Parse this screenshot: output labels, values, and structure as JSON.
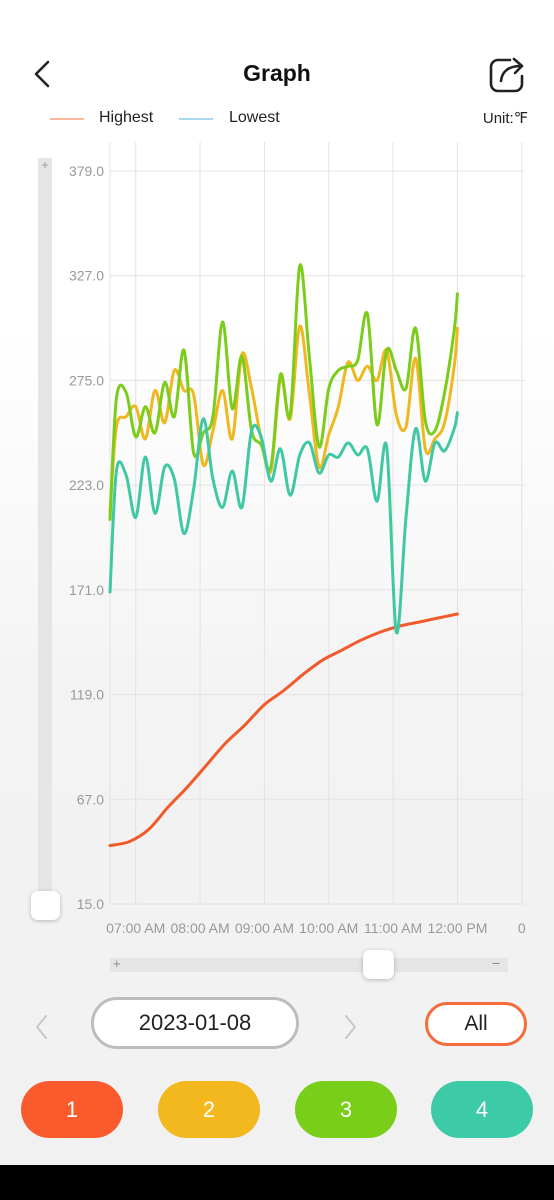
{
  "header": {
    "title": "Graph",
    "back_icon": "chevron-left-icon",
    "share_icon": "share-export-icon"
  },
  "legend": {
    "highest_label": "Highest",
    "highest_color": "#f7b89c",
    "lowest_label": "Lowest",
    "lowest_color": "#a9d9f0",
    "unit": "Unit:℉"
  },
  "chart_data": {
    "type": "line",
    "ylim": [
      15.0,
      379.0
    ],
    "y_ticks": [
      "379.0",
      "327.0",
      "275.0",
      "223.0",
      "171.0",
      "119.0",
      "67.0",
      "15.0"
    ],
    "x_tick_labels": [
      "07:00 AM",
      "08:00 AM",
      "09:00 AM",
      "10:00 AM",
      "11:00 AM",
      "12:00 PM",
      "0"
    ],
    "x_tick_times": [
      0.7,
      1.7,
      2.7,
      3.7,
      4.7,
      5.7,
      6.7
    ],
    "xlim": [
      0.3,
      6.75
    ],
    "grid": true,
    "series": [
      {
        "color": "#f15a2b",
        "x": [
          0.3,
          0.6,
          0.9,
          1.2,
          1.5,
          1.8,
          2.1,
          2.4,
          2.7,
          3.0,
          3.3,
          3.6,
          3.9,
          4.2,
          4.5,
          4.8,
          5.1,
          5.4,
          5.7
        ],
        "y": [
          44,
          46,
          52,
          63,
          73,
          84,
          95,
          104,
          114,
          121,
          129,
          136,
          141,
          146,
          150,
          153,
          155,
          157,
          159
        ]
      },
      {
        "color": "#efb820",
        "x": [
          0.3,
          0.4,
          0.55,
          0.7,
          0.85,
          1.0,
          1.15,
          1.3,
          1.45,
          1.6,
          1.75,
          1.9,
          2.05,
          2.2,
          2.35,
          2.5,
          2.65,
          2.8,
          2.95,
          3.1,
          3.25,
          3.4,
          3.55,
          3.7,
          3.85,
          4.0,
          4.15,
          4.3,
          4.45,
          4.6,
          4.75,
          4.9,
          5.05,
          5.2,
          5.35,
          5.5,
          5.65,
          5.7
        ],
        "y": [
          210,
          252,
          257,
          262,
          246,
          270,
          254,
          280,
          270,
          268,
          233,
          250,
          270,
          246,
          288,
          271,
          246,
          230,
          276,
          256,
          302,
          268,
          232,
          248,
          262,
          284,
          275,
          282,
          275,
          290,
          258,
          252,
          286,
          241,
          246,
          254,
          282,
          301
        ]
      },
      {
        "color": "#7ccc1c",
        "x": [
          0.3,
          0.4,
          0.55,
          0.7,
          0.85,
          1.0,
          1.15,
          1.3,
          1.45,
          1.6,
          1.75,
          1.9,
          2.05,
          2.2,
          2.35,
          2.5,
          2.65,
          2.8,
          2.95,
          3.1,
          3.25,
          3.4,
          3.55,
          3.7,
          3.85,
          4.0,
          4.15,
          4.3,
          4.45,
          4.6,
          4.75,
          4.9,
          5.05,
          5.2,
          5.35,
          5.5,
          5.65,
          5.7
        ],
        "y": [
          206,
          266,
          269,
          247,
          262,
          249,
          274,
          257,
          290,
          239,
          249,
          257,
          304,
          261,
          287,
          250,
          243,
          232,
          278,
          258,
          332,
          286,
          242,
          271,
          280,
          282,
          285,
          308,
          253,
          290,
          280,
          271,
          301,
          255,
          250,
          269,
          300,
          318
        ]
      },
      {
        "color": "#40c8a4",
        "x": [
          0.3,
          0.4,
          0.55,
          0.7,
          0.85,
          1.0,
          1.15,
          1.3,
          1.45,
          1.6,
          1.75,
          1.9,
          2.05,
          2.2,
          2.35,
          2.5,
          2.65,
          2.8,
          2.95,
          3.1,
          3.25,
          3.4,
          3.55,
          3.7,
          3.85,
          4.0,
          4.15,
          4.3,
          4.45,
          4.6,
          4.75,
          4.9,
          5.05,
          5.2,
          5.35,
          5.5,
          5.65,
          5.7
        ],
        "y": [
          170,
          230,
          228,
          207,
          237,
          209,
          232,
          226,
          199,
          221,
          256,
          226,
          212,
          230,
          212,
          250,
          247,
          225,
          241,
          218,
          238,
          244,
          229,
          238,
          237,
          244,
          238,
          241,
          215,
          242,
          150,
          207,
          251,
          225,
          244,
          240,
          251,
          259
        ]
      }
    ]
  },
  "scroll": {
    "vertical_plus": "+",
    "horizontal_plus": "+",
    "horizontal_minus": "−"
  },
  "date_nav": {
    "prev_icon": "chevron-left-icon",
    "next_icon": "chevron-right-icon",
    "date": "2023-01-08",
    "all_label": "All",
    "all_border_color": "#f46c3c"
  },
  "channels": [
    {
      "label": "1",
      "color": "#fb5a2c"
    },
    {
      "label": "2",
      "color": "#f2b81e"
    },
    {
      "label": "3",
      "color": "#79ce1a"
    },
    {
      "label": "4",
      "color": "#3dcaa6"
    }
  ]
}
